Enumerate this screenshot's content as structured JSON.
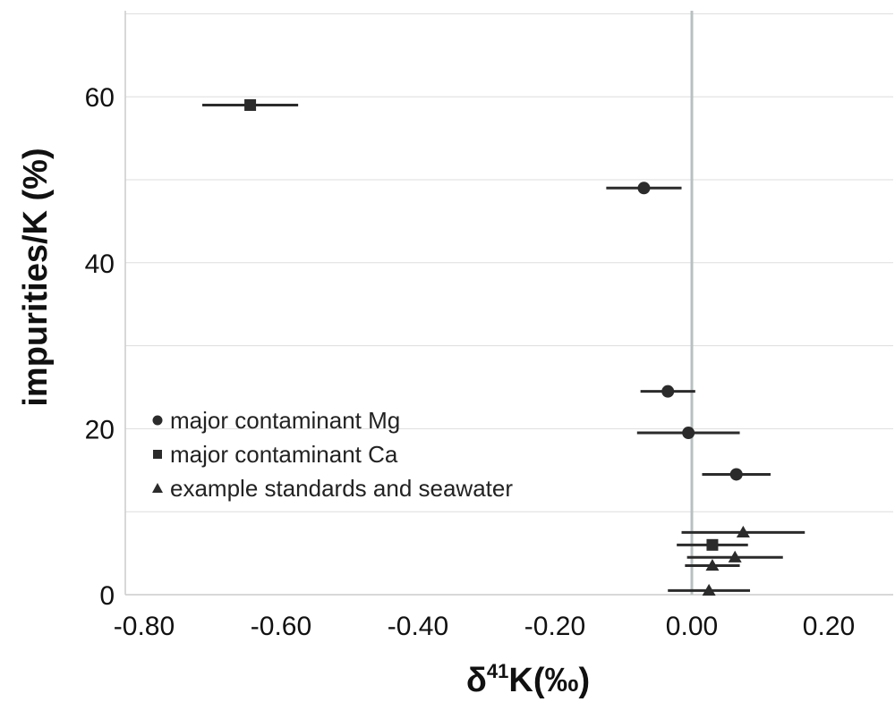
{
  "chart_data": {
    "type": "scatter",
    "title": "",
    "xlabel_main": "δ",
    "xlabel_sup": "41",
    "xlabel_rest": "K(‰)",
    "ylabel": "impurities/K (%)",
    "xlim": [
      -0.8,
      0.3
    ],
    "ylim": [
      0,
      70
    ],
    "x_ticks": [
      -0.8,
      -0.6,
      -0.4,
      -0.2,
      0.0,
      0.2
    ],
    "x_tick_labels": [
      "-0.80",
      "-0.60",
      "-0.40",
      "-0.20",
      "0.00",
      "0.20"
    ],
    "y_ticks": [
      0,
      20,
      40,
      60
    ],
    "y_tick_labels": [
      "0",
      "20",
      "40",
      "60"
    ],
    "grid": true,
    "reference_line_x": 0.0,
    "legend_position": "lower-left",
    "colors": {
      "marker": "#2b2b2b",
      "grid": "#dddddd",
      "reference": "#b8c0c0",
      "axis": "#cccccc"
    },
    "series": [
      {
        "name": "major contaminant Mg",
        "marker": "circle",
        "points": [
          {
            "x": -0.07,
            "y": 49.0,
            "xerr": 0.055
          },
          {
            "x": -0.035,
            "y": 24.5,
            "xerr": 0.04
          },
          {
            "x": -0.005,
            "y": 19.5,
            "xerr": 0.075
          },
          {
            "x": 0.065,
            "y": 14.5,
            "xerr": 0.05
          }
        ]
      },
      {
        "name": "major contaminant Ca",
        "marker": "square",
        "points": [
          {
            "x": -0.645,
            "y": 59.0,
            "xerr": 0.07
          },
          {
            "x": 0.03,
            "y": 6.0,
            "xerr": 0.052
          }
        ]
      },
      {
        "name": "example standards and seawater",
        "marker": "triangle",
        "points": [
          {
            "x": 0.075,
            "y": 7.5,
            "xerr": 0.09
          },
          {
            "x": 0.063,
            "y": 4.5,
            "xerr": 0.07
          },
          {
            "x": 0.03,
            "y": 3.5,
            "xerr": 0.04
          },
          {
            "x": 0.025,
            "y": 0.5,
            "xerr": 0.06
          }
        ]
      }
    ]
  }
}
